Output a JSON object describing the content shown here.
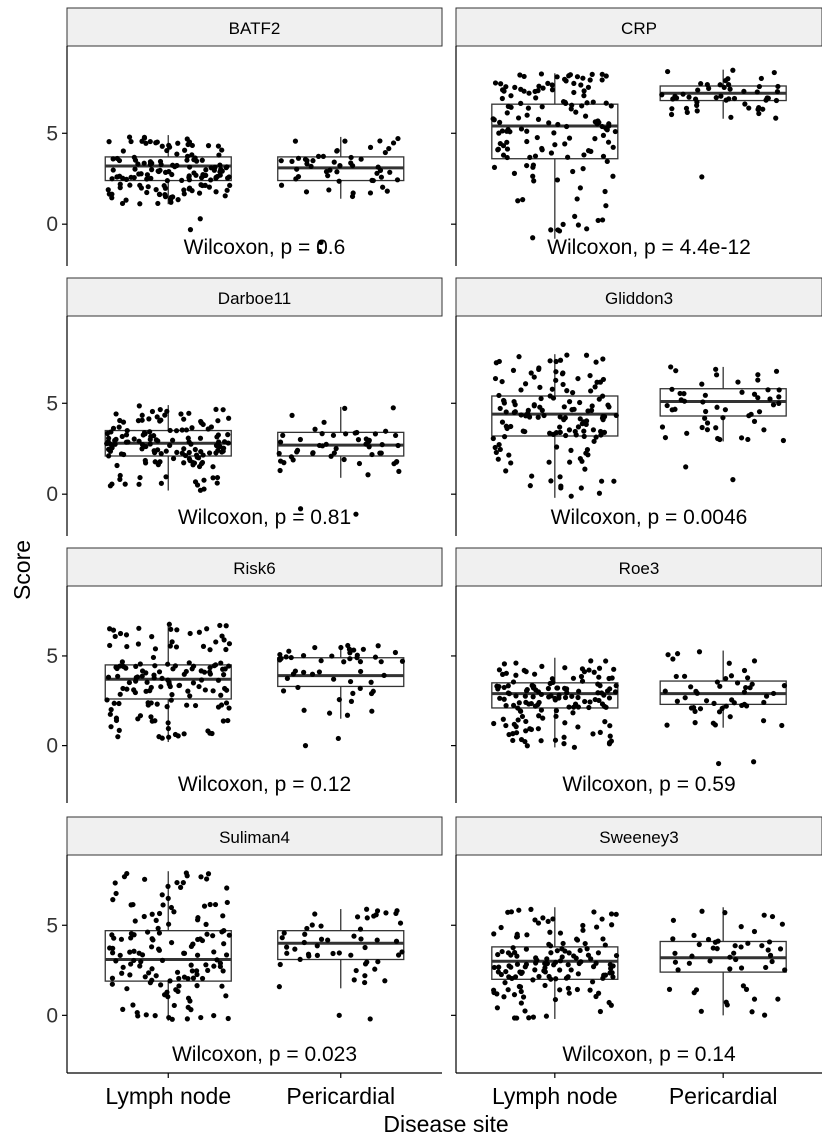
{
  "chart_data": {
    "type": "box",
    "xlabel": "Disease site",
    "ylabel": "Score",
    "categories": [
      "Lymph node",
      "Pericardial"
    ],
    "y_ticks": [
      0,
      5
    ],
    "grid": false,
    "legend": "none",
    "colors": {
      "strip": "#f0f0f0",
      "points": "#000000",
      "box": "#333333",
      "median": "#333333"
    },
    "panels": [
      {
        "title": "BATF2",
        "stat": "Wilcoxon, p = 0.6",
        "ylim": [
          -2.3,
          9.8
        ],
        "boxes": [
          {
            "category": "Lymph node",
            "q1": 2.4,
            "median": 3.2,
            "q3": 3.7,
            "whisker_low": 1.1,
            "whisker_high": 4.9,
            "outliers": [
              -0.3,
              0.3
            ],
            "n_points": 140
          },
          {
            "category": "Pericardial",
            "q1": 2.4,
            "median": 3.1,
            "q3": 3.7,
            "whisker_low": 1.4,
            "whisker_high": 4.8,
            "outliers": [
              -1.0,
              -1.5
            ],
            "n_points": 50
          }
        ]
      },
      {
        "title": "CRP",
        "stat": "Wilcoxon, p = 4.4e-12",
        "ylim": [
          -2.3,
          9.8
        ],
        "boxes": [
          {
            "category": "Lymph node",
            "q1": 3.6,
            "median": 5.4,
            "q3": 6.6,
            "whisker_low": -0.8,
            "whisker_high": 8.3,
            "outliers": [],
            "n_points": 140
          },
          {
            "category": "Pericardial",
            "q1": 6.8,
            "median": 7.2,
            "q3": 7.6,
            "whisker_low": 5.8,
            "whisker_high": 8.5,
            "outliers": [
              2.6
            ],
            "n_points": 50
          }
        ]
      },
      {
        "title": "Darboe11",
        "stat": "Wilcoxon, p = 0.81",
        "ylim": [
          -2.3,
          9.8
        ],
        "boxes": [
          {
            "category": "Lymph node",
            "q1": 2.1,
            "median": 2.8,
            "q3": 3.5,
            "whisker_low": 0.2,
            "whisker_high": 4.9,
            "outliers": [],
            "n_points": 140
          },
          {
            "category": "Pericardial",
            "q1": 2.1,
            "median": 2.7,
            "q3": 3.4,
            "whisker_low": 0.9,
            "whisker_high": 4.8,
            "outliers": [
              -0.8,
              -1.1
            ],
            "n_points": 50
          }
        ]
      },
      {
        "title": "Gliddon3",
        "stat": "Wilcoxon, p = 0.0046",
        "ylim": [
          -2.3,
          9.8
        ],
        "boxes": [
          {
            "category": "Lymph node",
            "q1": 3.2,
            "median": 4.4,
            "q3": 5.4,
            "whisker_low": -0.2,
            "whisker_high": 7.7,
            "outliers": [],
            "n_points": 140
          },
          {
            "category": "Pericardial",
            "q1": 4.3,
            "median": 5.1,
            "q3": 5.8,
            "whisker_low": 2.9,
            "whisker_high": 7.0,
            "outliers": [
              1.5,
              0.8
            ],
            "n_points": 50
          }
        ]
      },
      {
        "title": "Risk6",
        "stat": "Wilcoxon, p = 0.12",
        "ylim": [
          -3.2,
          8.9
        ],
        "boxes": [
          {
            "category": "Lymph node",
            "q1": 2.6,
            "median": 3.7,
            "q3": 4.5,
            "whisker_low": 0.2,
            "whisker_high": 6.8,
            "outliers": [],
            "n_points": 140
          },
          {
            "category": "Pericardial",
            "q1": 3.3,
            "median": 3.9,
            "q3": 4.9,
            "whisker_low": 1.5,
            "whisker_high": 5.6,
            "outliers": [
              0.4,
              0.0
            ],
            "n_points": 50
          }
        ]
      },
      {
        "title": "Roe3",
        "stat": "Wilcoxon, p = 0.59",
        "ylim": [
          -3.2,
          8.9
        ],
        "boxes": [
          {
            "category": "Lymph node",
            "q1": 2.1,
            "median": 2.9,
            "q3": 3.5,
            "whisker_low": -0.1,
            "whisker_high": 4.9,
            "outliers": [],
            "n_points": 140
          },
          {
            "category": "Pericardial",
            "q1": 2.3,
            "median": 2.9,
            "q3": 3.6,
            "whisker_low": 1.0,
            "whisker_high": 5.3,
            "outliers": [
              -0.9,
              -1.0
            ],
            "n_points": 50
          }
        ]
      },
      {
        "title": "Suliman4",
        "stat": "Wilcoxon, p = 0.023",
        "ylim": [
          -3.2,
          8.9
        ],
        "boxes": [
          {
            "category": "Lymph node",
            "q1": 1.9,
            "median": 3.1,
            "q3": 4.7,
            "whisker_low": -0.3,
            "whisker_high": 8.0,
            "outliers": [],
            "n_points": 140
          },
          {
            "category": "Pericardial",
            "q1": 3.1,
            "median": 4.0,
            "q3": 4.7,
            "whisker_low": 1.5,
            "whisker_high": 5.9,
            "outliers": [
              0.0,
              -0.2
            ],
            "n_points": 50
          }
        ]
      },
      {
        "title": "Sweeney3",
        "stat": "Wilcoxon, p = 0.14",
        "ylim": [
          -3.2,
          8.9
        ],
        "boxes": [
          {
            "category": "Lymph node",
            "q1": 2.0,
            "median": 3.0,
            "q3": 3.8,
            "whisker_low": -0.2,
            "whisker_high": 6.0,
            "outliers": [],
            "n_points": 140
          },
          {
            "category": "Pericardial",
            "q1": 2.4,
            "median": 3.2,
            "q3": 4.1,
            "whisker_low": 0.0,
            "whisker_high": 6.0,
            "outliers": [],
            "n_points": 50
          }
        ]
      }
    ]
  }
}
